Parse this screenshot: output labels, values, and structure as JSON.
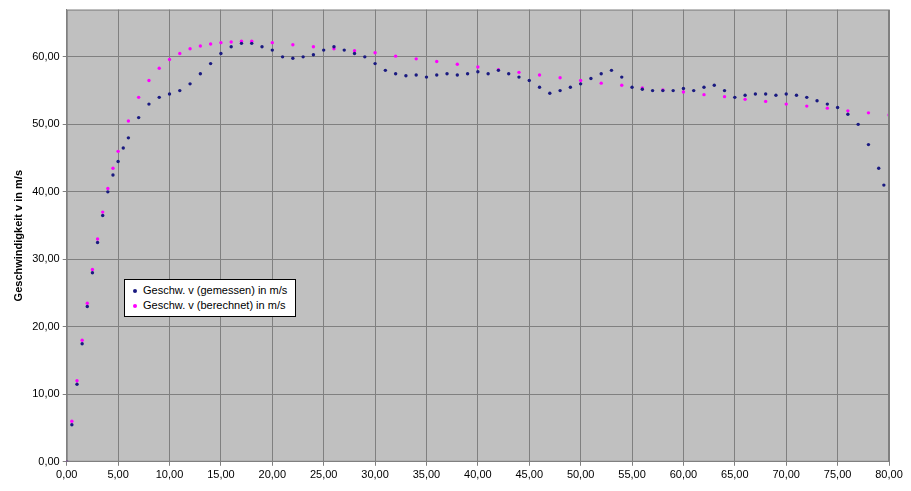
{
  "chart_data": {
    "type": "scatter",
    "y_label": "Geschwindigkeit v in m/s",
    "xlim": [
      0,
      80
    ],
    "ylim": [
      0,
      67
    ],
    "xticks": [
      {
        "value": 0,
        "label": "0,00"
      },
      {
        "value": 5,
        "label": "5,00"
      },
      {
        "value": 10,
        "label": "10,00"
      },
      {
        "value": 15,
        "label": "15,00"
      },
      {
        "value": 20,
        "label": "20,00"
      },
      {
        "value": 25,
        "label": "25,00"
      },
      {
        "value": 30,
        "label": "30,00"
      },
      {
        "value": 35,
        "label": "35,00"
      },
      {
        "value": 40,
        "label": "40,00"
      },
      {
        "value": 45,
        "label": "45,00"
      },
      {
        "value": 50,
        "label": "50,00"
      },
      {
        "value": 55,
        "label": "55,00"
      },
      {
        "value": 60,
        "label": "60,00"
      },
      {
        "value": 65,
        "label": "65,00"
      },
      {
        "value": 70,
        "label": "70,00"
      },
      {
        "value": 75,
        "label": "75,00"
      },
      {
        "value": 80,
        "label": "80,00"
      }
    ],
    "yticks": [
      {
        "value": 0,
        "label": "0,00"
      },
      {
        "value": 10,
        "label": "10,00"
      },
      {
        "value": 20,
        "label": "20,00"
      },
      {
        "value": 30,
        "label": "30,00"
      },
      {
        "value": 40,
        "label": "40,00"
      },
      {
        "value": 50,
        "label": "50,00"
      },
      {
        "value": 60,
        "label": "60,00"
      }
    ],
    "grid": true,
    "legend": "lower left",
    "series": [
      {
        "name": "Geschw. v (gemessen) in m/s",
        "color": "#1a1a80",
        "marker": "circle",
        "line_style": "none",
        "x": [
          0,
          0.5,
          1,
          1.5,
          2,
          2.5,
          3,
          3.5,
          4,
          4.5,
          5,
          5.5,
          6,
          7,
          8,
          9,
          10,
          11,
          12,
          13,
          14,
          15,
          16,
          17,
          18,
          19,
          20,
          21,
          22,
          23,
          24,
          25,
          26,
          27,
          28,
          29,
          30,
          31,
          32,
          33,
          34,
          35,
          36,
          37,
          38,
          39,
          40,
          41,
          42,
          43,
          44,
          45,
          46,
          47,
          48,
          49,
          50,
          51,
          52,
          53,
          54,
          55,
          56,
          57,
          58,
          59,
          60,
          61,
          62,
          63,
          64,
          65,
          66,
          67,
          68,
          69,
          70,
          71,
          72,
          73,
          74,
          75,
          76,
          77,
          78,
          79,
          79.5
        ],
        "values": [
          0,
          5.5,
          11.5,
          17.5,
          23,
          28,
          32.5,
          36.5,
          40,
          42.5,
          44.5,
          46.5,
          48,
          51,
          53,
          54,
          54.5,
          55,
          56,
          57.5,
          59,
          60.5,
          61.5,
          62,
          62,
          61.5,
          61,
          60,
          59.8,
          60,
          60.3,
          61,
          61.5,
          61,
          60.5,
          60,
          59,
          58,
          57.5,
          57.2,
          57.3,
          57,
          57.3,
          57.5,
          57.3,
          57.5,
          57.8,
          57.5,
          58,
          57.5,
          57,
          56.5,
          55.5,
          54.6,
          55,
          55.5,
          56,
          56.8,
          57.5,
          58,
          57,
          55.5,
          55.2,
          55,
          55,
          55,
          55.3,
          55,
          55.5,
          55.8,
          55,
          54,
          54.3,
          54.5,
          54.5,
          54.3,
          54.5,
          54.3,
          54,
          53.5,
          53,
          52.5,
          51.5,
          50,
          47,
          43.5,
          41
        ]
      },
      {
        "name": "Geschw. v (berechnet) in m/s",
        "color": "#ff00ff",
        "marker": "circle",
        "line_style": "none",
        "x": [
          0,
          0.5,
          1,
          1.5,
          2,
          2.5,
          3,
          3.5,
          4,
          4.5,
          5,
          6,
          7,
          8,
          9,
          10,
          11,
          12,
          13,
          14,
          15,
          16,
          17,
          18,
          20,
          22,
          24,
          26,
          28,
          30,
          32,
          34,
          36,
          38,
          40,
          42,
          44,
          46,
          48,
          50,
          52,
          54,
          56,
          58,
          60,
          62,
          64,
          66,
          68,
          70,
          72,
          74,
          76,
          78,
          80
        ],
        "values": [
          0,
          6,
          12,
          18,
          23.5,
          28.5,
          33,
          37,
          40.5,
          43.5,
          46,
          50.5,
          54,
          56.5,
          58.3,
          59.6,
          60.5,
          61.2,
          61.6,
          61.9,
          62.1,
          62.2,
          62.3,
          62.3,
          62.1,
          61.8,
          61.5,
          61.2,
          60.9,
          60.6,
          60.1,
          59.7,
          59.3,
          58.9,
          58.5,
          58.1,
          57.7,
          57.3,
          56.9,
          56.5,
          56.1,
          55.8,
          55.4,
          55.1,
          54.8,
          54.4,
          54.1,
          53.7,
          53.4,
          53.0,
          52.7,
          52.4,
          52.0,
          51.7,
          51.4
        ]
      }
    ]
  }
}
